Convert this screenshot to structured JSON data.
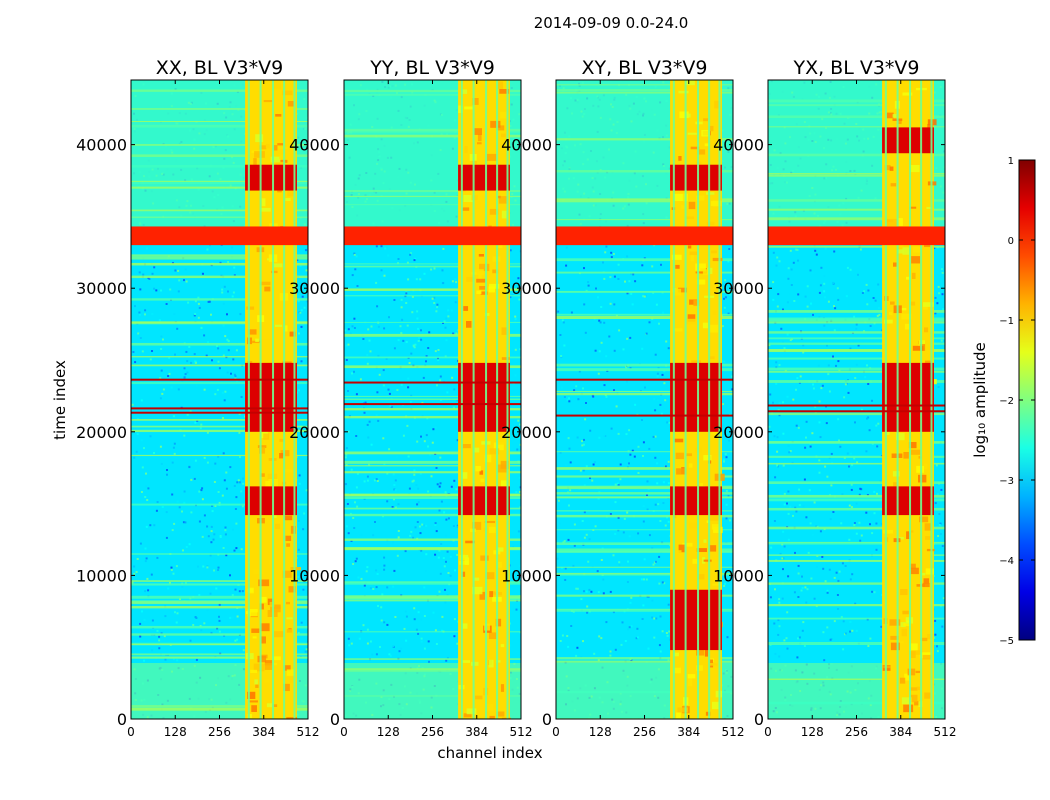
{
  "figure": {
    "suptitle": "2014-09-09 0.0-24.0",
    "xlabel": "channel index",
    "ylabel": "time index"
  },
  "chart_data": {
    "type": "heatmap",
    "x_ticks": [
      0,
      128,
      256,
      384,
      512
    ],
    "y_ticks": [
      0,
      10000,
      20000,
      30000,
      40000
    ],
    "xlim": [
      0,
      512
    ],
    "ylim": [
      0,
      44500
    ],
    "colorbar": {
      "label": "log₁₀ amplitude",
      "ticks": [
        1,
        0,
        -1,
        -2,
        -3,
        -4,
        -5
      ],
      "range": [
        -5,
        1
      ],
      "colormap": "jet"
    },
    "panels": [
      {
        "title": "XX, BL V3*V9",
        "background_log_amp": -2.9,
        "saturated_band": [
          33000,
          34300
        ],
        "rfi_channel_range": [
          330,
          480
        ],
        "strong_rfi_time_ranges": [
          [
            20000,
            24800
          ],
          [
            14200,
            16200
          ],
          [
            36800,
            38600
          ]
        ],
        "hot_rows": [
          21400,
          21700,
          23700
        ]
      },
      {
        "title": "YY, BL V3*V9",
        "background_log_amp": -2.9,
        "saturated_band": [
          33000,
          34300
        ],
        "rfi_channel_range": [
          330,
          480
        ],
        "strong_rfi_time_ranges": [
          [
            20000,
            24800
          ],
          [
            14200,
            16200
          ],
          [
            36800,
            38600
          ]
        ],
        "hot_rows": [
          22000,
          23500
        ]
      },
      {
        "title": "XY, BL V3*V9",
        "background_log_amp": -2.9,
        "saturated_band": [
          33000,
          34300
        ],
        "rfi_channel_range": [
          330,
          480
        ],
        "strong_rfi_time_ranges": [
          [
            20000,
            24800
          ],
          [
            14200,
            16200
          ],
          [
            36800,
            38600
          ],
          [
            4800,
            9000
          ]
        ],
        "hot_rows": [
          21200,
          23700
        ]
      },
      {
        "title": "YX, BL V3*V9",
        "background_log_amp": -2.9,
        "saturated_band": [
          33000,
          34300
        ],
        "rfi_channel_range": [
          330,
          480
        ],
        "strong_rfi_time_ranges": [
          [
            20000,
            24800
          ],
          [
            14200,
            16200
          ],
          [
            39400,
            41200
          ]
        ],
        "hot_rows": [
          21500,
          21900
        ]
      }
    ]
  }
}
